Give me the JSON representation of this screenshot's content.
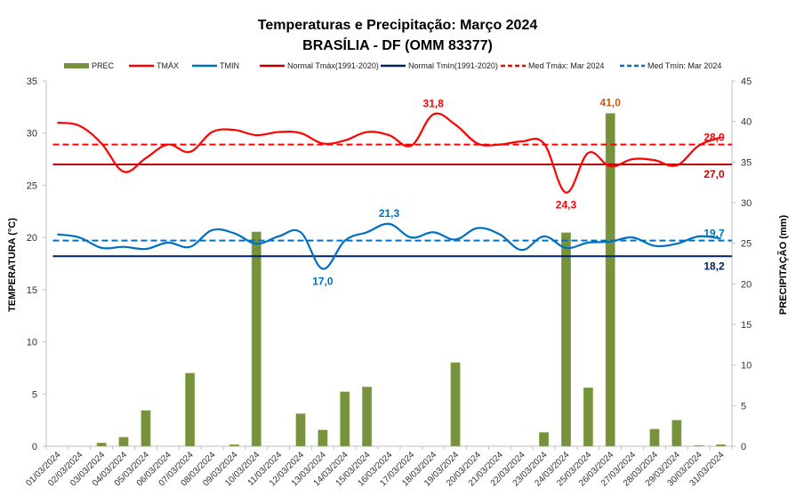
{
  "chart_data": {
    "type": "bar+line",
    "title": "Temperaturas e Precipitação: Março 2024",
    "subtitle": "BRASÍLIA - DF (OMM 83377)",
    "ylabel_left": "TEMPERATURA  (°C)",
    "ylabel_right": "PRECIPITAÇÃO  (mm)",
    "ylim_left": [
      0,
      35
    ],
    "yticks_left": [
      0,
      5,
      10,
      15,
      20,
      25,
      30,
      35
    ],
    "ylim_right": [
      0,
      45
    ],
    "yticks_right": [
      0,
      5,
      10,
      15,
      20,
      25,
      30,
      35,
      40,
      45
    ],
    "grid": false,
    "legend_position": "top",
    "categories": [
      "01/03/2024",
      "02/03/2024",
      "03/03/2024",
      "04/03/2024",
      "05/03/2024",
      "06/03/2024",
      "07/03/2024",
      "08/03/2024",
      "09/03/2024",
      "10/03/2024",
      "11/03/2024",
      "12/03/2024",
      "13/03/2024",
      "14/03/2024",
      "15/03/2024",
      "16/03/2024",
      "17/03/2024",
      "18/03/2024",
      "19/03/2024",
      "20/03/2024",
      "21/03/2024",
      "22/03/2024",
      "23/03/2024",
      "24/03/2024",
      "25/03/2024",
      "26/03/2024",
      "27/03/2024",
      "28/03/2024",
      "29/03/2024",
      "30/03/2024",
      "31/03/2024"
    ],
    "series": [
      {
        "name": "PREC",
        "kind": "bar",
        "axis": "right",
        "color": "#76923c",
        "values": [
          0,
          0,
          0.4,
          1.1,
          4.4,
          0,
          9.0,
          0,
          0.2,
          26.4,
          0,
          4.0,
          2.0,
          6.7,
          7.3,
          0,
          0,
          0,
          10.3,
          0,
          0,
          0,
          1.7,
          26.3,
          7.2,
          41.0,
          0,
          2.1,
          3.2,
          0.1,
          0.2
        ]
      },
      {
        "name": "TMÁX",
        "kind": "line",
        "axis": "left",
        "color": "#ff0000",
        "smooth": true,
        "values": [
          31.0,
          30.7,
          29.0,
          26.3,
          27.6,
          28.9,
          28.2,
          30.1,
          30.3,
          29.8,
          30.1,
          30.0,
          29.0,
          29.3,
          30.1,
          29.8,
          28.8,
          31.8,
          30.8,
          29.0,
          28.9,
          29.2,
          29.0,
          24.3,
          28.1,
          26.8,
          27.5,
          27.4,
          26.9,
          28.8,
          29.6
        ]
      },
      {
        "name": "TMIN",
        "kind": "line",
        "axis": "left",
        "color": "#0070c0",
        "smooth": true,
        "values": [
          20.3,
          20.0,
          19.0,
          19.1,
          18.9,
          19.5,
          19.1,
          20.7,
          20.4,
          19.4,
          20.1,
          20.5,
          17.0,
          19.7,
          20.5,
          21.3,
          20.0,
          20.5,
          19.8,
          20.9,
          20.3,
          18.8,
          20.1,
          19.0,
          19.5,
          19.6,
          20.0,
          19.2,
          19.4,
          20.1,
          19.9
        ]
      },
      {
        "name": "Normal Tmáx(1991-2020)",
        "kind": "hline",
        "axis": "left",
        "color": "#c00000",
        "value": 27.0
      },
      {
        "name": "Normal Tmín(1991-2020)",
        "kind": "hline",
        "axis": "left",
        "color": "#002060",
        "value": 18.2
      },
      {
        "name": "Med Tmáx: Mar 2024",
        "kind": "hline-dashed",
        "axis": "left",
        "color": "#ff0000",
        "value": 28.9
      },
      {
        "name": "Med Tmín: Mar 2024",
        "kind": "hline-dashed",
        "axis": "left",
        "color": "#0070c0",
        "value": 19.7
      }
    ],
    "annotations": [
      {
        "text": "31,8",
        "series": "TMÁX",
        "index": 17,
        "position": "above",
        "color": "#ff0000"
      },
      {
        "text": "24,3",
        "series": "TMÁX",
        "index": 23,
        "position": "below",
        "color": "#ff0000"
      },
      {
        "text": "21,3",
        "series": "TMIN",
        "index": 15,
        "position": "above",
        "color": "#0070c0"
      },
      {
        "text": "17,0",
        "series": "TMIN",
        "index": 12,
        "position": "below",
        "color": "#0070c0"
      },
      {
        "text": "41,0",
        "series": "PREC",
        "index": 25,
        "position": "above",
        "color": "#c55a11"
      },
      {
        "text": "28,9",
        "series": "Med Tmáx: Mar 2024",
        "position": "end-above",
        "color": "#ff0000"
      },
      {
        "text": "27,0",
        "series": "Normal Tmáx(1991-2020)",
        "position": "end-below",
        "color": "#c00000"
      },
      {
        "text": "19,7",
        "series": "Med Tmín: Mar 2024",
        "position": "end-above",
        "color": "#0070c0"
      },
      {
        "text": "18,2",
        "series": "Normal Tmín(1991-2020)",
        "position": "end-below",
        "color": "#002060"
      }
    ]
  }
}
